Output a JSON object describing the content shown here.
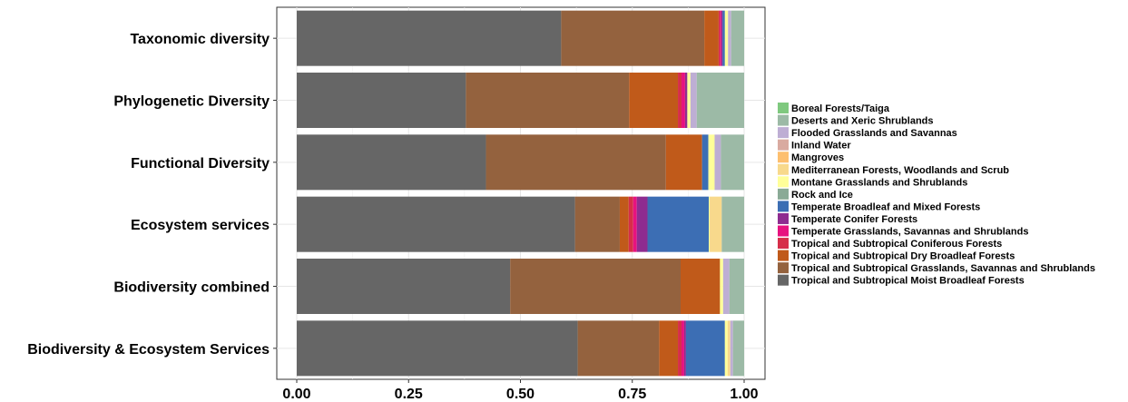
{
  "chart_data": {
    "type": "bar",
    "orientation": "horizontal",
    "stacked": true,
    "title": "",
    "xlabel": "",
    "ylabel": "",
    "xlim": [
      0,
      1.04
    ],
    "xticks": [
      "0.00",
      "0.25",
      "0.50",
      "0.75",
      "1.00"
    ],
    "xtick_values": [
      0,
      0.25,
      0.5,
      0.75,
      1.0
    ],
    "grid": true,
    "legend_position": "right",
    "categories": [
      "Taxonomic diversity",
      "Phylogenetic Diversity",
      "Functional Diversity",
      "Ecosystem services",
      "Biodiversity combined",
      "Biodiversity & Ecosystem Services"
    ],
    "series": [
      {
        "name": "Tropical and Subtropical Moist Broadleaf Forests",
        "color": "#666666",
        "values": [
          0.591,
          0.378,
          0.423,
          0.622,
          0.477,
          0.628
        ]
      },
      {
        "name": "Tropical and Subtropical Grasslands, Savannas and Shrublands",
        "color": "#94623E",
        "values": [
          0.32,
          0.365,
          0.402,
          0.1,
          0.381,
          0.182
        ]
      },
      {
        "name": "Tropical and Subtropical Dry Broadleaf Forests",
        "color": "#C05A1A",
        "values": [
          0.032,
          0.109,
          0.081,
          0.02,
          0.088,
          0.042
        ]
      },
      {
        "name": "Tropical and Subtropical Coniferous Forests",
        "color": "#D62E49",
        "values": [
          0.003,
          0.008,
          0.0,
          0.01,
          0.0,
          0.008
        ]
      },
      {
        "name": "Temperate Grasslands, Savannas and Shrublands",
        "color": "#E7127F",
        "values": [
          0.003,
          0.008,
          0.0,
          0.008,
          0.0,
          0.006
        ]
      },
      {
        "name": "Temperate Conifer Forests",
        "color": "#8E2C90",
        "values": [
          0.003,
          0.005,
          0.0,
          0.024,
          0.0,
          0.004
        ]
      },
      {
        "name": "Temperate Broadleaf and Mixed Forests",
        "color": "#3C6EB4",
        "values": [
          0.005,
          0.0,
          0.014,
          0.137,
          0.0,
          0.087
        ]
      },
      {
        "name": "Rock and Ice",
        "color": "#8AAA96",
        "values": [
          0.0,
          0.0,
          0.0,
          0.0,
          0.0,
          0.0
        ]
      },
      {
        "name": "Montane Grasslands and Shrublands",
        "color": "#FFFF99",
        "values": [
          0.007,
          0.007,
          0.014,
          0.002,
          0.007,
          0.006
        ]
      },
      {
        "name": "Mediterranean Forests, Woodlands and Scrub",
        "color": "#F8D98C",
        "values": [
          0.0,
          0.0,
          0.0,
          0.027,
          0.0,
          0.006
        ]
      },
      {
        "name": "Mangroves",
        "color": "#FDBF6F",
        "values": [
          0.0,
          0.0,
          0.0,
          0.0,
          0.0,
          0.0
        ]
      },
      {
        "name": "Inland Water",
        "color": "#D9AAA0",
        "values": [
          0.0,
          0.0,
          0.0,
          0.0,
          0.0,
          0.0
        ]
      },
      {
        "name": "Flooded Grasslands and Savannas",
        "color": "#BEAED4",
        "values": [
          0.007,
          0.014,
          0.014,
          0.0,
          0.014,
          0.006
        ]
      },
      {
        "name": "Deserts and Xeric Shrublands",
        "color": "#9CBAA6",
        "values": [
          0.029,
          0.106,
          0.052,
          0.05,
          0.033,
          0.025
        ]
      },
      {
        "name": "Boreal Forests/Taiga",
        "color": "#7FC97F",
        "values": [
          0.0,
          0.0,
          0.0,
          0.0,
          0.0,
          0.0
        ]
      }
    ],
    "legend_order": [
      "Boreal Forests/Taiga",
      "Deserts and Xeric Shrublands",
      "Flooded Grasslands and Savannas",
      "Inland Water",
      "Mangroves",
      "Mediterranean Forests, Woodlands and Scrub",
      "Montane Grasslands and Shrublands",
      "Rock and Ice",
      "Temperate Broadleaf and Mixed Forests",
      "Temperate Conifer Forests",
      "Temperate Grasslands, Savannas and Shrublands",
      "Tropical and Subtropical Coniferous Forests",
      "Tropical and Subtropical Dry Broadleaf Forests",
      "Tropical and Subtropical Grasslands, Savannas and Shrublands",
      "Tropical and Subtropical Moist Broadleaf Forests"
    ]
  }
}
